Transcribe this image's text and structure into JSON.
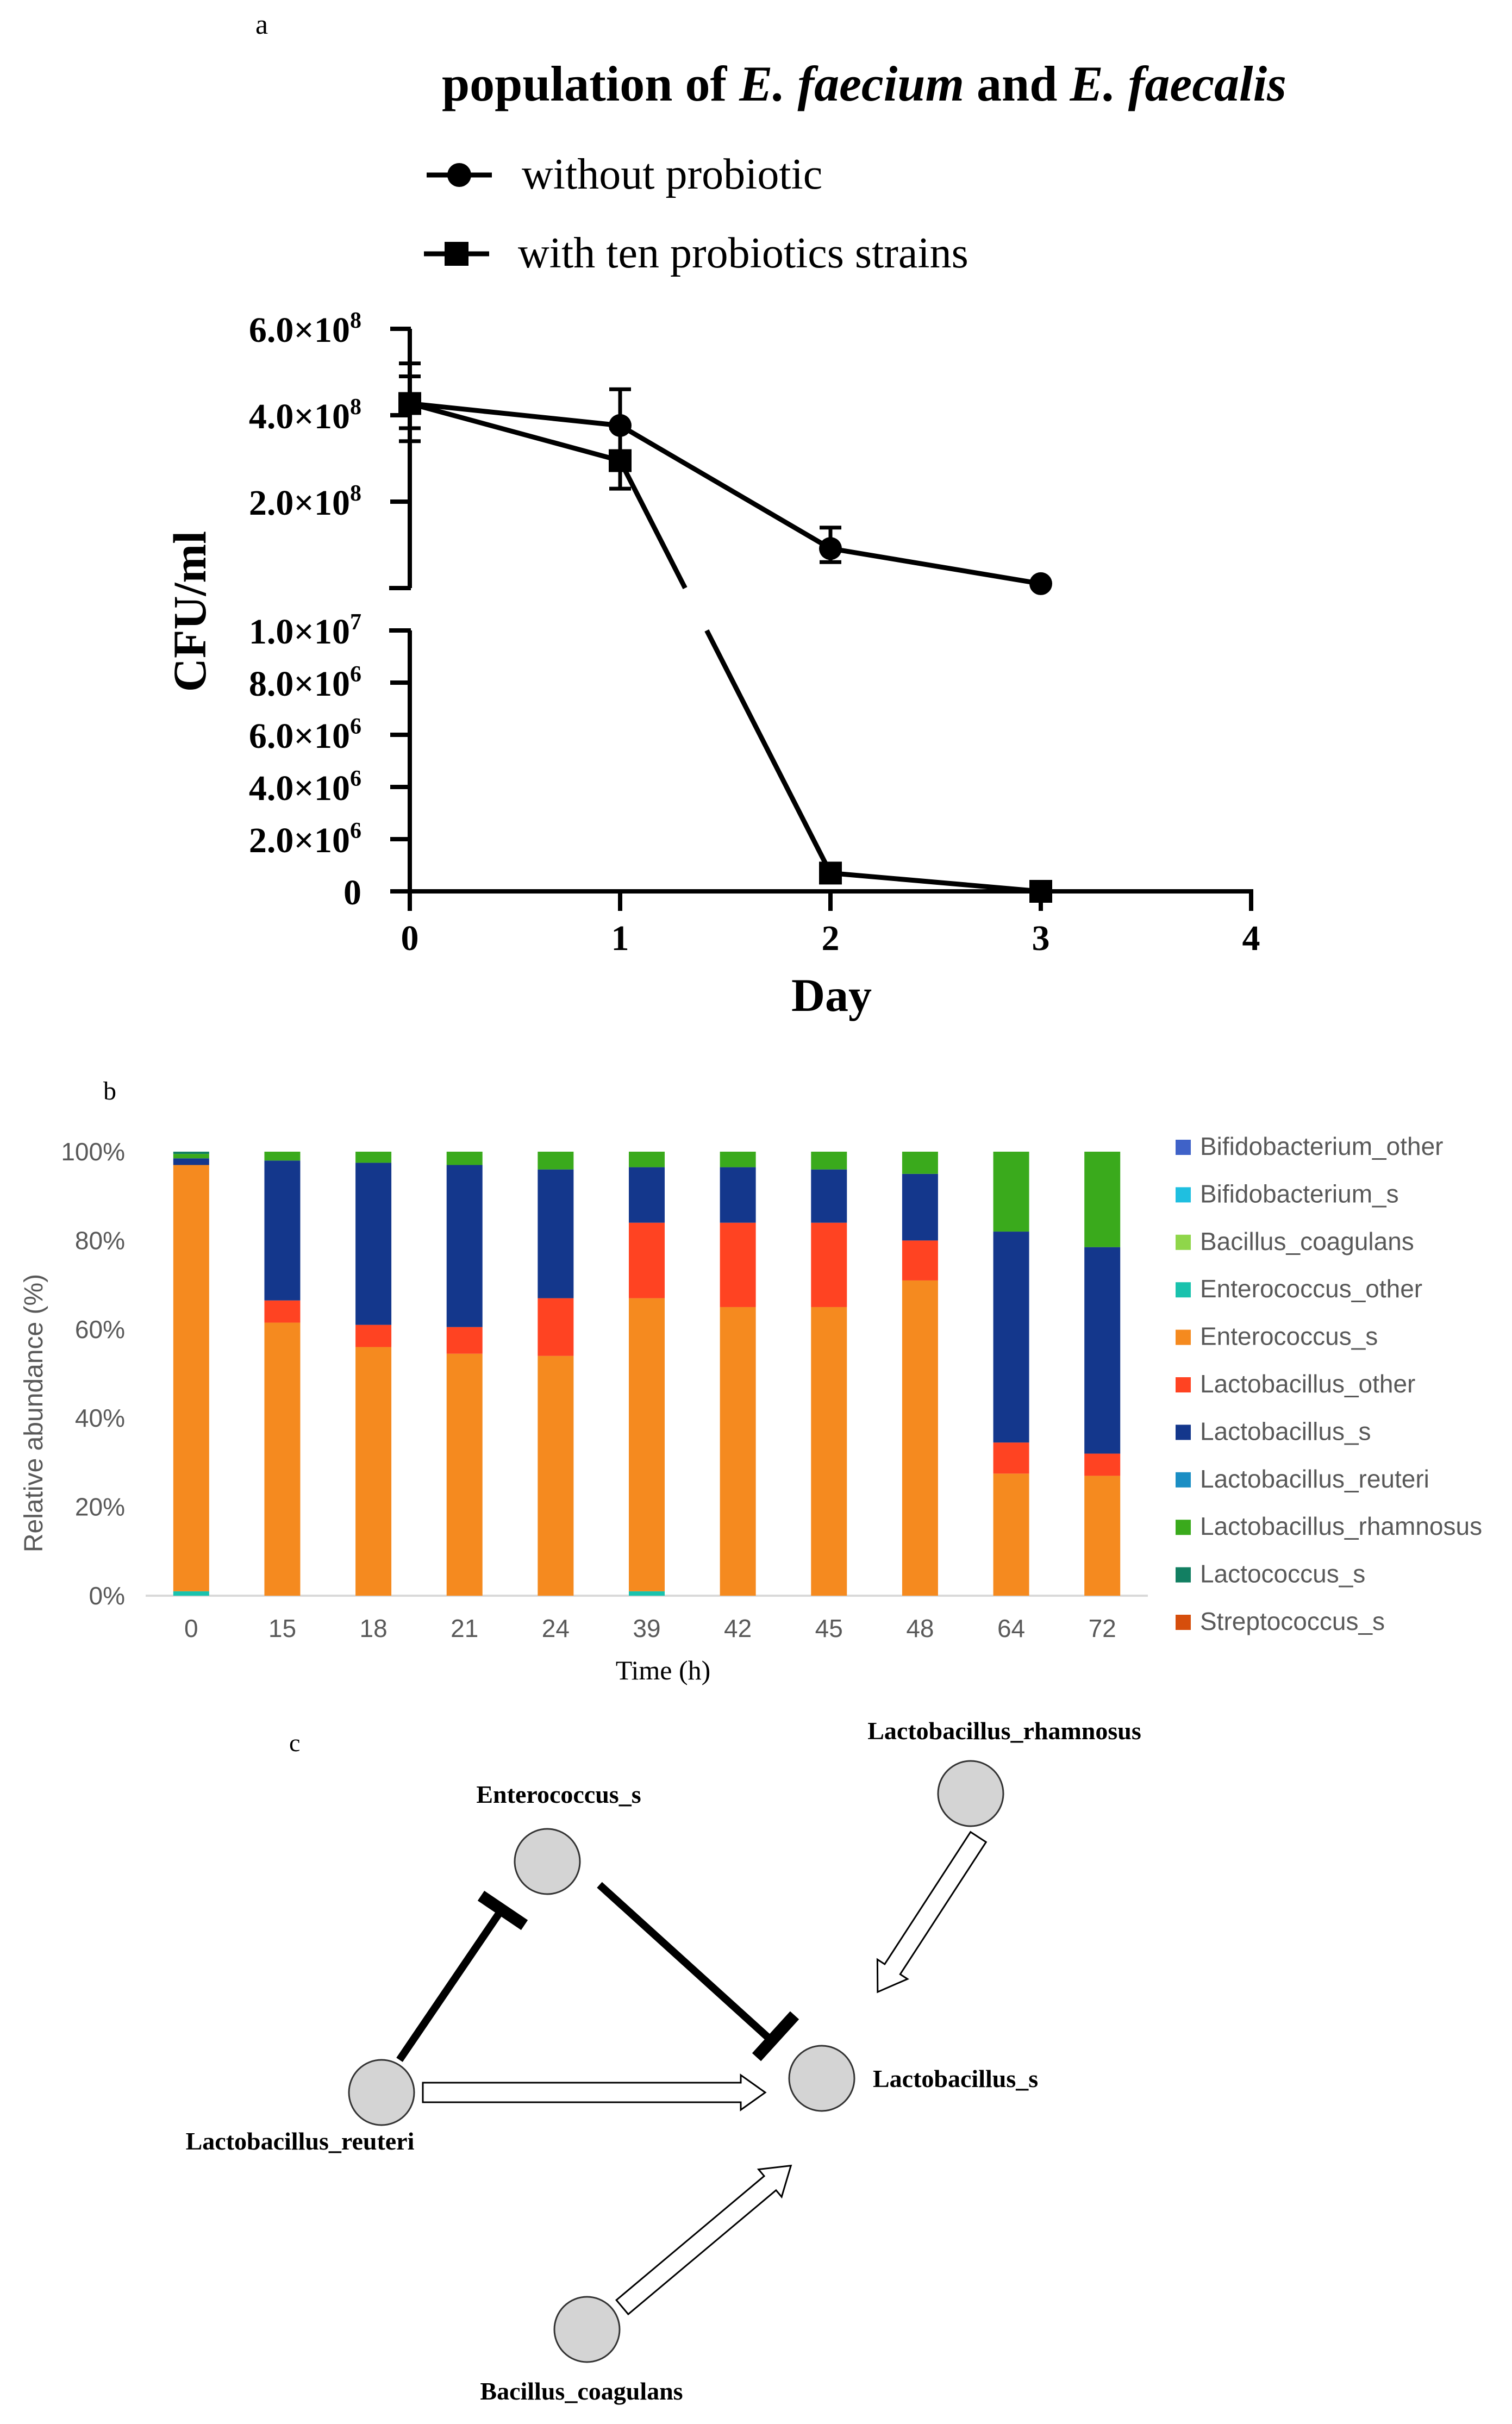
{
  "panel_labels": {
    "a": "a",
    "b": "b",
    "c": "c"
  },
  "colors": {
    "Bifidobacterium_other": "#3f62c8",
    "Bifidobacterium_s": "#1fbfe0",
    "Bacillus_coagulans": "#8fd64a",
    "Enterococcus_other": "#19c2ad",
    "Enterococcus_s": "#f58a1f",
    "Lactobacillus_other": "#ff4322",
    "Lactobacillus_s": "#14378c",
    "Lactobacillus_reuteri": "#1b8ec4",
    "Lactobacillus_rhamnosus": "#3aaa1c",
    "Lactococcus_s": "#127f62",
    "Streptococcus_s": "#d64e0c"
  },
  "chart_data": [
    {
      "type": "line",
      "title_plain": "population of",
      "title_italic_1": "E. faecium",
      "title_and": "and",
      "title_italic_2": "E. faecalis",
      "xlabel": "Day",
      "ylabel": "CFU/ml",
      "x_ticks": [
        "0",
        "1",
        "2",
        "3",
        "4"
      ],
      "xlim": [
        0,
        4
      ],
      "y_axis_broken": true,
      "ylim_lower": [
        0,
        10000000
      ],
      "ylim_upper": [
        0,
        600000000
      ],
      "y_ticks_lower": [
        {
          "value": 0,
          "base": "0",
          "exp": ""
        },
        {
          "value": 2000000,
          "base": "2.0×10",
          "exp": "6"
        },
        {
          "value": 4000000,
          "base": "4.0×10",
          "exp": "6"
        },
        {
          "value": 6000000,
          "base": "6.0×10",
          "exp": "6"
        },
        {
          "value": 8000000,
          "base": "8.0×10",
          "exp": "6"
        },
        {
          "value": 10000000,
          "base": "1.0×10",
          "exp": "7"
        }
      ],
      "y_ticks_upper": [
        {
          "value": 200000000,
          "base": "2.0×10",
          "exp": "8"
        },
        {
          "value": 400000000,
          "base": "4.0×10",
          "exp": "8"
        },
        {
          "value": 600000000,
          "base": "6.0×10",
          "exp": "8"
        }
      ],
      "series": [
        {
          "name": "without probiotic",
          "marker": "circle",
          "x": [
            0,
            1,
            2,
            3
          ],
          "y": [
            430000000,
            380000000,
            100000000,
            20000000
          ],
          "err": [
            90000000,
            80000000,
            40000000,
            0
          ]
        },
        {
          "name": "with ten probiotics strains",
          "marker": "square",
          "x": [
            0,
            1,
            2,
            3
          ],
          "y": [
            430000000,
            300000000,
            700000,
            0
          ],
          "err": [
            60000000,
            70000000,
            0,
            0
          ]
        }
      ]
    },
    {
      "type": "bar",
      "stacked": true,
      "xlabel": "Time (h)",
      "ylabel": "Relative abundance (%)",
      "y_ticks": [
        "0%",
        "20%",
        "40%",
        "60%",
        "80%",
        "100%"
      ],
      "ylim": [
        0,
        100
      ],
      "categories": [
        "0",
        "15",
        "18",
        "21",
        "24",
        "39",
        "42",
        "45",
        "48",
        "64",
        "72"
      ],
      "series": [
        {
          "name": "Bifidobacterium_other",
          "values": [
            0,
            0,
            0,
            0,
            0,
            0,
            0,
            0,
            0,
            0,
            0
          ]
        },
        {
          "name": "Bifidobacterium_s",
          "values": [
            0,
            0,
            0,
            0,
            0,
            0,
            0,
            0,
            0,
            0,
            0
          ]
        },
        {
          "name": "Bacillus_coagulans",
          "values": [
            0,
            0,
            0,
            0,
            0,
            0,
            0,
            0,
            0,
            0,
            0
          ]
        },
        {
          "name": "Enterococcus_other",
          "values": [
            1,
            0,
            0,
            0,
            0,
            1,
            0,
            0,
            0,
            0,
            0
          ]
        },
        {
          "name": "Enterococcus_s",
          "values": [
            96,
            61.5,
            56,
            54.5,
            54,
            66,
            65,
            65,
            71,
            27.5,
            27
          ]
        },
        {
          "name": "Lactobacillus_other",
          "values": [
            0,
            5,
            5,
            6,
            13,
            17,
            19,
            19,
            9,
            7,
            5
          ]
        },
        {
          "name": "Lactobacillus_s",
          "values": [
            1.5,
            31.5,
            36.5,
            36.5,
            29,
            12.5,
            12.5,
            12,
            15,
            47.5,
            46.5
          ]
        },
        {
          "name": "Lactobacillus_reuteri",
          "values": [
            0,
            0,
            0,
            0,
            0,
            0,
            0,
            0,
            0,
            0,
            0
          ]
        },
        {
          "name": "Lactobacillus_rhamnosus",
          "values": [
            1,
            2,
            2.5,
            3,
            4,
            3.5,
            3.5,
            4,
            5,
            18,
            21.5
          ]
        },
        {
          "name": "Lactococcus_s",
          "values": [
            0.5,
            0,
            0,
            0,
            0,
            0,
            0,
            0,
            0,
            0,
            0
          ]
        },
        {
          "name": "Streptococcus_s",
          "values": [
            0,
            0,
            0,
            0,
            0,
            0,
            0,
            0,
            0,
            0,
            0
          ]
        }
      ]
    }
  ],
  "network": {
    "nodes": [
      {
        "id": "Enterococcus_s",
        "label": "Enterococcus_s"
      },
      {
        "id": "Lactobacillus_rhamnosus",
        "label": "Lactobacillus_rhamnosus"
      },
      {
        "id": "Lactobacillus_reuteri",
        "label": "Lactobacillus_reuteri"
      },
      {
        "id": "Lactobacillus_s",
        "label": "Lactobacillus_s"
      },
      {
        "id": "Bacillus_coagulans",
        "label": "Bacillus_coagulans"
      }
    ],
    "edges": [
      {
        "from": "Lactobacillus_reuteri",
        "to": "Enterococcus_s",
        "type": "inhibition"
      },
      {
        "from": "Enterococcus_s",
        "to": "Lactobacillus_s",
        "type": "inhibition"
      },
      {
        "from": "Lactobacillus_reuteri",
        "to": "Lactobacillus_s",
        "type": "promotion"
      },
      {
        "from": "Lactobacillus_rhamnosus",
        "to": "Lactobacillus_s",
        "type": "promotion"
      },
      {
        "from": "Bacillus_coagulans",
        "to": "Lactobacillus_s",
        "type": "promotion"
      }
    ]
  }
}
